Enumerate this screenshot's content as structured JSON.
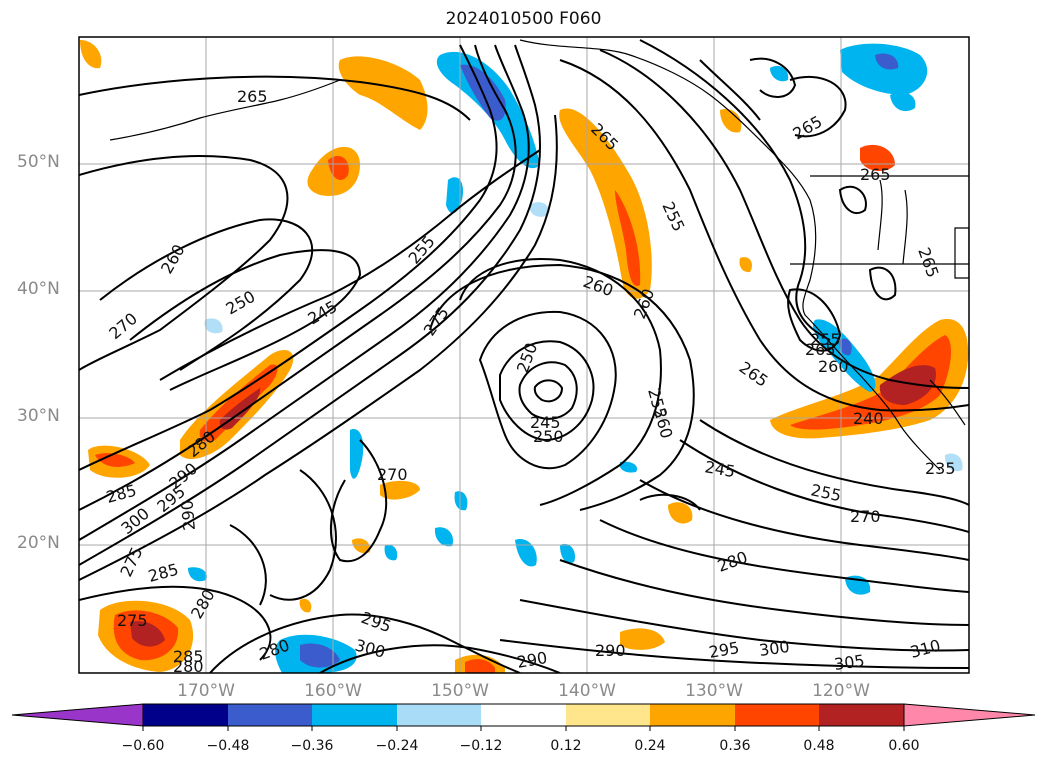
{
  "title": "2024010500 F060",
  "lat_labels": [
    "50°N",
    "40°N",
    "30°N",
    "20°N"
  ],
  "lon_labels": [
    "170°W",
    "160°W",
    "150°W",
    "140°W",
    "130°W",
    "120°W"
  ],
  "colorbar": {
    "ticks": [
      "−0.60",
      "−0.48",
      "−0.36",
      "−0.24",
      "−0.12",
      "0.12",
      "0.24",
      "0.36",
      "0.48",
      "0.60"
    ],
    "colors": [
      "#9a35c9",
      "#00008b",
      "#3a5ccc",
      "#00b4f0",
      "#a8dcf7",
      "#ffffff",
      "#ffe68c",
      "#ffa500",
      "#ff4500",
      "#b22222",
      "#ff88aa"
    ]
  },
  "contour_labels": [
    "265",
    "265",
    "265",
    "265",
    "265",
    "265",
    "260",
    "260",
    "260",
    "270",
    "255",
    "250",
    "245",
    "275",
    "255",
    "280",
    "290",
    "270",
    "285",
    "295",
    "300",
    "290",
    "275",
    "285",
    "280",
    "275",
    "280",
    "295",
    "300",
    "285",
    "280",
    "250",
    "245",
    "250",
    "265",
    "255",
    "260",
    "255",
    "260",
    "240",
    "245",
    "255",
    "270",
    "280",
    "295",
    "300",
    "305",
    "310",
    "235",
    "290"
  ]
}
